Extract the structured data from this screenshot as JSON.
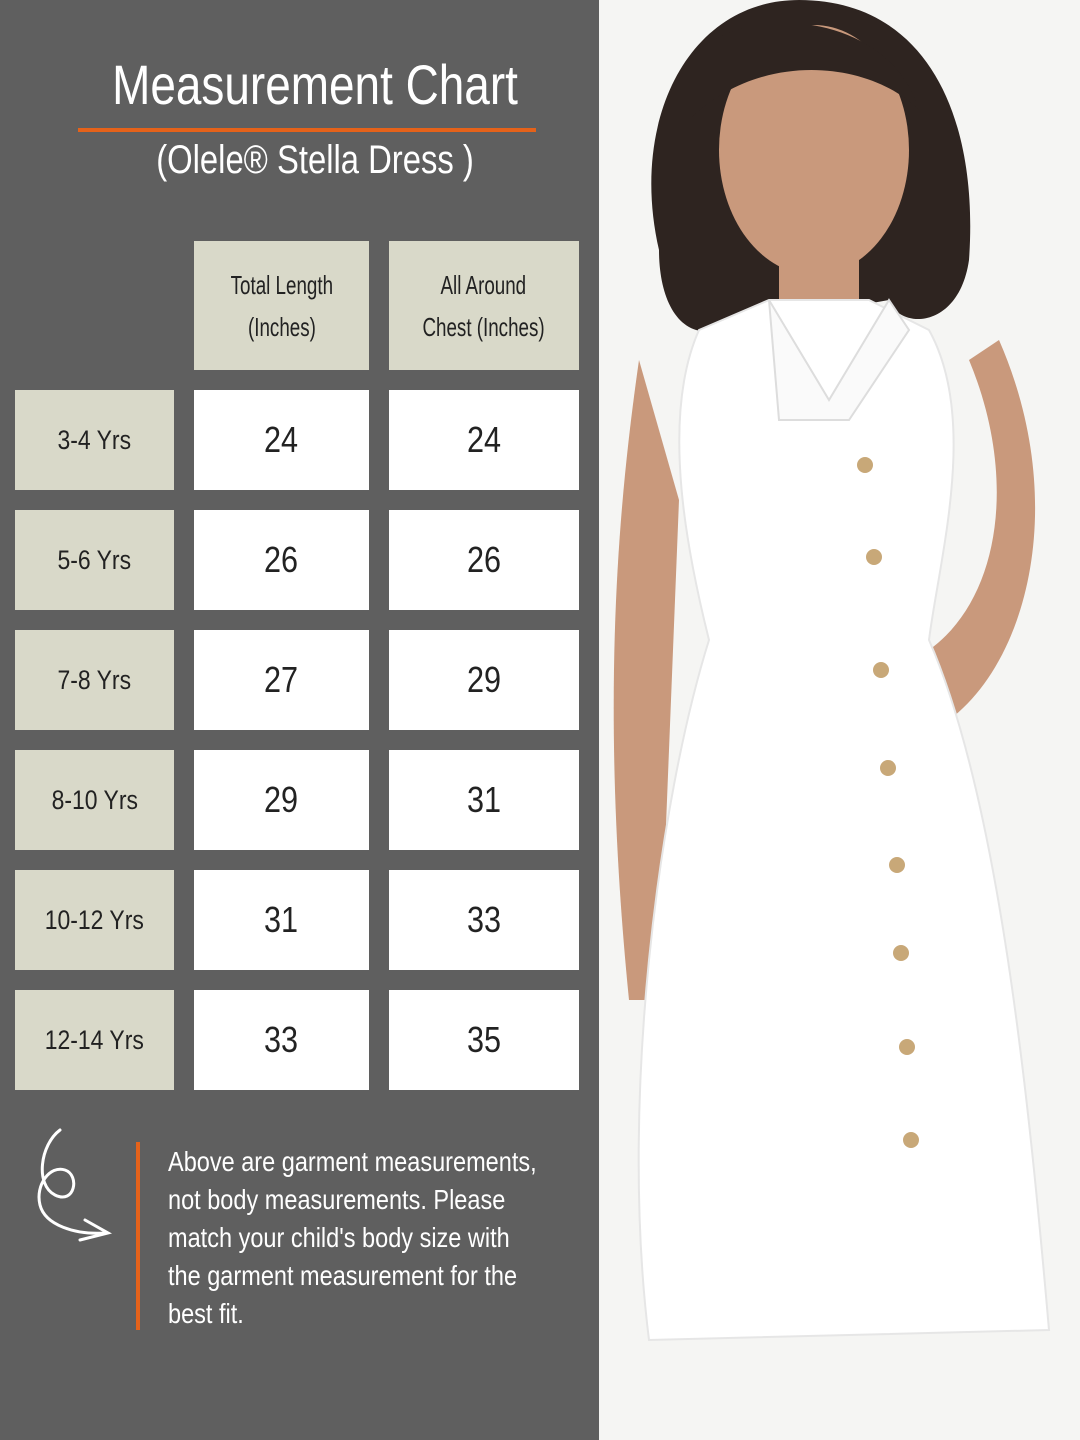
{
  "title": "Measurement Chart",
  "subtitle": "(Olele® Stella Dress )",
  "colors": {
    "panel": "#5f5f5f",
    "accent": "#e5621a",
    "header_cell": "#d9d9c9",
    "value_cell": "#ffffff"
  },
  "table": {
    "headers": [
      [
        "Total Length",
        "(Inches)"
      ],
      [
        "All Around",
        "Chest (Inches)"
      ]
    ],
    "rows": [
      {
        "size": "3-4 Yrs",
        "length": "24",
        "chest": "24"
      },
      {
        "size": "5-6 Yrs",
        "length": "26",
        "chest": "26"
      },
      {
        "size": "7-8 Yrs",
        "length": "27",
        "chest": "29"
      },
      {
        "size": "8-10 Yrs",
        "length": "29",
        "chest": "31"
      },
      {
        "size": "10-12 Yrs",
        "length": "31",
        "chest": "33"
      },
      {
        "size": "12-14 Yrs",
        "length": "33",
        "chest": "35"
      }
    ]
  },
  "note": {
    "icon": "curly-arrow-icon",
    "lines": [
      "Above are garment measurements,",
      "not body measurements. Please",
      "match your child's body size with",
      "the garment measurement for the",
      "best fit."
    ]
  },
  "photo": {
    "subject": "model-photo"
  }
}
